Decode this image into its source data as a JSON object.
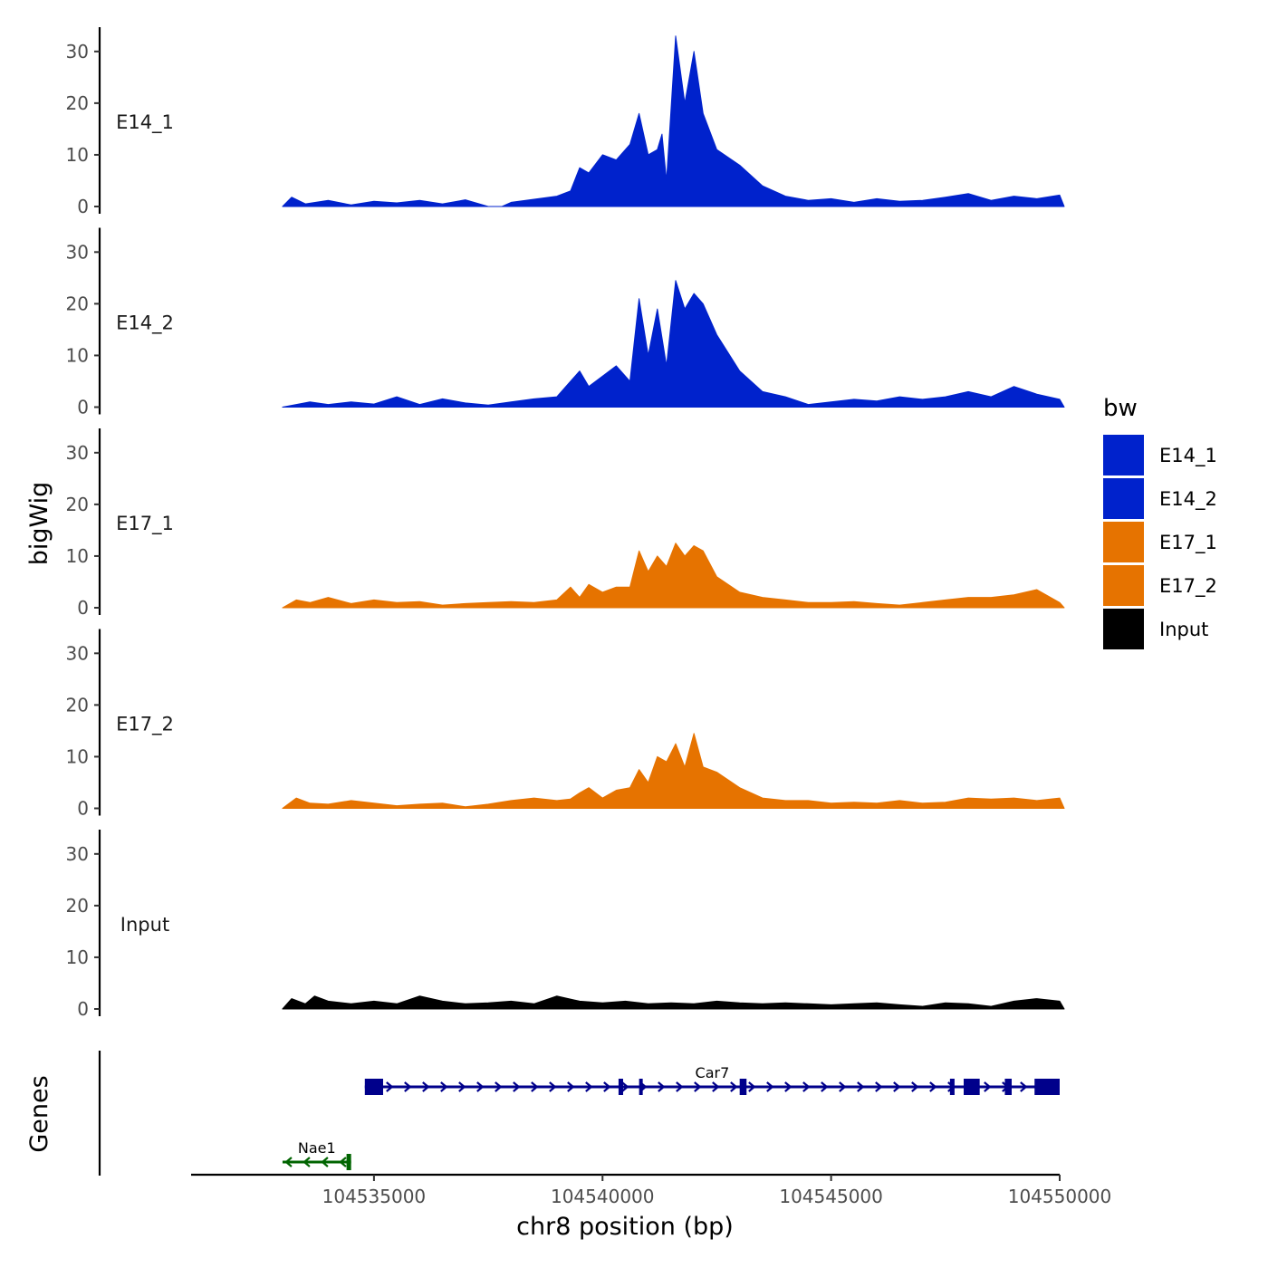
{
  "chart_data": {
    "type": "area",
    "xlabel": "chr8 position (bp)",
    "ylabel": "bigWig",
    "genes_label": "Genes",
    "xlim": [
      104531000,
      104550000
    ],
    "ylim": [
      0,
      34
    ],
    "y_ticks": [
      0,
      10,
      20,
      30
    ],
    "x_ticks": [
      104535000,
      104540000,
      104545000,
      104550000
    ],
    "legend": {
      "title": "bw",
      "entries": [
        {
          "label": "E14_1",
          "color": "#0022CC"
        },
        {
          "label": "E14_2",
          "color": "#0022CC"
        },
        {
          "label": "E17_1",
          "color": "#E67300"
        },
        {
          "label": "E17_2",
          "color": "#E67300"
        },
        {
          "label": "Input",
          "color": "#000000"
        }
      ]
    },
    "series": [
      {
        "name": "E14_1",
        "color": "#0022CC",
        "points": [
          [
            104533000,
            0
          ],
          [
            104533200,
            1.8
          ],
          [
            104533500,
            0.5
          ],
          [
            104534000,
            1.2
          ],
          [
            104534500,
            0.3
          ],
          [
            104535000,
            1.0
          ],
          [
            104535500,
            0.7
          ],
          [
            104536000,
            1.2
          ],
          [
            104536500,
            0.5
          ],
          [
            104537000,
            1.3
          ],
          [
            104537500,
            0
          ],
          [
            104537800,
            0
          ],
          [
            104538000,
            0.8
          ],
          [
            104538500,
            1.4
          ],
          [
            104539000,
            2.0
          ],
          [
            104539300,
            3.0
          ],
          [
            104539500,
            7.5
          ],
          [
            104539700,
            6.5
          ],
          [
            104540000,
            10.0
          ],
          [
            104540300,
            9.0
          ],
          [
            104540600,
            12.0
          ],
          [
            104540800,
            18.0
          ],
          [
            104541000,
            10.0
          ],
          [
            104541200,
            11.0
          ],
          [
            104541300,
            14.0
          ],
          [
            104541400,
            5.0
          ],
          [
            104541600,
            33.0
          ],
          [
            104541800,
            20.0
          ],
          [
            104542000,
            30.0
          ],
          [
            104542200,
            18.0
          ],
          [
            104542500,
            11.0
          ],
          [
            104543000,
            8.0
          ],
          [
            104543500,
            4.0
          ],
          [
            104544000,
            2.0
          ],
          [
            104544500,
            1.2
          ],
          [
            104545000,
            1.5
          ],
          [
            104545500,
            0.8
          ],
          [
            104546000,
            1.5
          ],
          [
            104546500,
            1.0
          ],
          [
            104547000,
            1.2
          ],
          [
            104547500,
            1.8
          ],
          [
            104548000,
            2.5
          ],
          [
            104548500,
            1.2
          ],
          [
            104549000,
            2.0
          ],
          [
            104549500,
            1.5
          ],
          [
            104550000,
            2.2
          ],
          [
            104550100,
            0
          ]
        ]
      },
      {
        "name": "E14_2",
        "color": "#0022CC",
        "points": [
          [
            104533000,
            0
          ],
          [
            104533300,
            0.5
          ],
          [
            104533600,
            1.0
          ],
          [
            104534000,
            0.5
          ],
          [
            104534500,
            1.0
          ],
          [
            104535000,
            0.6
          ],
          [
            104535500,
            2.0
          ],
          [
            104536000,
            0.5
          ],
          [
            104536500,
            1.6
          ],
          [
            104537000,
            0.8
          ],
          [
            104537500,
            0.4
          ],
          [
            104538000,
            1.0
          ],
          [
            104538500,
            1.6
          ],
          [
            104539000,
            2.0
          ],
          [
            104539300,
            5.0
          ],
          [
            104539500,
            7.0
          ],
          [
            104539700,
            4.0
          ],
          [
            104540000,
            6.0
          ],
          [
            104540300,
            8.0
          ],
          [
            104540600,
            5.0
          ],
          [
            104540800,
            21.0
          ],
          [
            104541000,
            10.0
          ],
          [
            104541200,
            19.0
          ],
          [
            104541400,
            8.0
          ],
          [
            104541600,
            24.5
          ],
          [
            104541800,
            19.0
          ],
          [
            104542000,
            22.0
          ],
          [
            104542200,
            20.0
          ],
          [
            104542500,
            14.0
          ],
          [
            104543000,
            7.0
          ],
          [
            104543500,
            3.0
          ],
          [
            104544000,
            2.0
          ],
          [
            104544500,
            0.5
          ],
          [
            104545000,
            1.0
          ],
          [
            104545500,
            1.5
          ],
          [
            104546000,
            1.2
          ],
          [
            104546500,
            2.0
          ],
          [
            104547000,
            1.5
          ],
          [
            104547500,
            2.0
          ],
          [
            104548000,
            3.0
          ],
          [
            104548500,
            2.0
          ],
          [
            104549000,
            4.0
          ],
          [
            104549500,
            2.5
          ],
          [
            104550000,
            1.5
          ],
          [
            104550100,
            0
          ]
        ]
      },
      {
        "name": "E17_1",
        "color": "#E67300",
        "points": [
          [
            104533000,
            0
          ],
          [
            104533300,
            1.5
          ],
          [
            104533600,
            1.0
          ],
          [
            104534000,
            2.0
          ],
          [
            104534500,
            0.8
          ],
          [
            104535000,
            1.5
          ],
          [
            104535500,
            1.0
          ],
          [
            104536000,
            1.2
          ],
          [
            104536500,
            0.5
          ],
          [
            104537000,
            0.8
          ],
          [
            104537500,
            1.0
          ],
          [
            104538000,
            1.2
          ],
          [
            104538500,
            1.0
          ],
          [
            104539000,
            1.5
          ],
          [
            104539300,
            4.0
          ],
          [
            104539500,
            2.0
          ],
          [
            104539700,
            4.5
          ],
          [
            104540000,
            3.0
          ],
          [
            104540300,
            4.0
          ],
          [
            104540600,
            4.0
          ],
          [
            104540800,
            11.0
          ],
          [
            104541000,
            7.0
          ],
          [
            104541200,
            10.0
          ],
          [
            104541400,
            8.0
          ],
          [
            104541600,
            12.5
          ],
          [
            104541800,
            10.0
          ],
          [
            104542000,
            12.0
          ],
          [
            104542200,
            11.0
          ],
          [
            104542500,
            6.0
          ],
          [
            104543000,
            3.0
          ],
          [
            104543500,
            2.0
          ],
          [
            104544000,
            1.5
          ],
          [
            104544500,
            1.0
          ],
          [
            104545000,
            1.0
          ],
          [
            104545500,
            1.2
          ],
          [
            104546000,
            0.8
          ],
          [
            104546500,
            0.5
          ],
          [
            104547000,
            1.0
          ],
          [
            104547500,
            1.5
          ],
          [
            104548000,
            2.0
          ],
          [
            104548500,
            2.0
          ],
          [
            104549000,
            2.5
          ],
          [
            104549500,
            3.5
          ],
          [
            104550000,
            1.0
          ],
          [
            104550100,
            0
          ]
        ]
      },
      {
        "name": "E17_2",
        "color": "#E67300",
        "points": [
          [
            104533000,
            0
          ],
          [
            104533300,
            2.0
          ],
          [
            104533600,
            1.0
          ],
          [
            104534000,
            0.8
          ],
          [
            104534500,
            1.5
          ],
          [
            104535000,
            1.0
          ],
          [
            104535500,
            0.5
          ],
          [
            104536000,
            0.8
          ],
          [
            104536500,
            1.0
          ],
          [
            104537000,
            0.3
          ],
          [
            104537500,
            0.8
          ],
          [
            104538000,
            1.5
          ],
          [
            104538500,
            2.0
          ],
          [
            104539000,
            1.5
          ],
          [
            104539300,
            1.8
          ],
          [
            104539500,
            3.0
          ],
          [
            104539700,
            4.0
          ],
          [
            104540000,
            2.0
          ],
          [
            104540300,
            3.5
          ],
          [
            104540600,
            4.0
          ],
          [
            104540800,
            7.5
          ],
          [
            104541000,
            5.0
          ],
          [
            104541200,
            10.0
          ],
          [
            104541400,
            9.0
          ],
          [
            104541600,
            12.5
          ],
          [
            104541800,
            8.0
          ],
          [
            104542000,
            14.5
          ],
          [
            104542200,
            8.0
          ],
          [
            104542500,
            7.0
          ],
          [
            104543000,
            4.0
          ],
          [
            104543500,
            2.0
          ],
          [
            104544000,
            1.5
          ],
          [
            104544500,
            1.5
          ],
          [
            104545000,
            1.0
          ],
          [
            104545500,
            1.2
          ],
          [
            104546000,
            1.0
          ],
          [
            104546500,
            1.5
          ],
          [
            104547000,
            1.0
          ],
          [
            104547500,
            1.2
          ],
          [
            104548000,
            2.0
          ],
          [
            104548500,
            1.8
          ],
          [
            104549000,
            2.0
          ],
          [
            104549500,
            1.5
          ],
          [
            104550000,
            2.0
          ],
          [
            104550100,
            0
          ]
        ]
      },
      {
        "name": "Input",
        "color": "#000000",
        "points": [
          [
            104533000,
            0
          ],
          [
            104533200,
            2.0
          ],
          [
            104533500,
            1.0
          ],
          [
            104533700,
            2.5
          ],
          [
            104534000,
            1.5
          ],
          [
            104534500,
            1.0
          ],
          [
            104535000,
            1.5
          ],
          [
            104535500,
            1.0
          ],
          [
            104536000,
            2.5
          ],
          [
            104536500,
            1.5
          ],
          [
            104537000,
            1.0
          ],
          [
            104537500,
            1.2
          ],
          [
            104538000,
            1.5
          ],
          [
            104538500,
            1.0
          ],
          [
            104539000,
            2.5
          ],
          [
            104539500,
            1.5
          ],
          [
            104540000,
            1.2
          ],
          [
            104540500,
            1.5
          ],
          [
            104541000,
            1.0
          ],
          [
            104541500,
            1.2
          ],
          [
            104542000,
            1.0
          ],
          [
            104542500,
            1.5
          ],
          [
            104543000,
            1.2
          ],
          [
            104543500,
            1.0
          ],
          [
            104544000,
            1.2
          ],
          [
            104544500,
            1.0
          ],
          [
            104545000,
            0.8
          ],
          [
            104545500,
            1.0
          ],
          [
            104546000,
            1.2
          ],
          [
            104546500,
            0.8
          ],
          [
            104547000,
            0.5
          ],
          [
            104547500,
            1.2
          ],
          [
            104548000,
            1.0
          ],
          [
            104548500,
            0.5
          ],
          [
            104549000,
            1.5
          ],
          [
            104549500,
            2.0
          ],
          [
            104550000,
            1.5
          ],
          [
            104550100,
            0
          ]
        ]
      }
    ],
    "genes": [
      {
        "name": "Car7",
        "start": 104534800,
        "end": 104550000,
        "strand": "+",
        "color": "#00008B",
        "row": 1,
        "exons": [
          [
            104534800,
            104535200
          ],
          [
            104540350,
            104540450
          ],
          [
            104540800,
            104540850
          ],
          [
            104543000,
            104543150
          ],
          [
            104547600,
            104547700
          ],
          [
            104547900,
            104548250
          ],
          [
            104548800,
            104548950
          ],
          [
            104549450,
            104550000
          ]
        ]
      },
      {
        "name": "Nae1",
        "start": 104533000,
        "end": 104534500,
        "strand": "-",
        "color": "#006400",
        "row": 2,
        "exons": [
          [
            104534400,
            104534500
          ]
        ]
      }
    ]
  }
}
